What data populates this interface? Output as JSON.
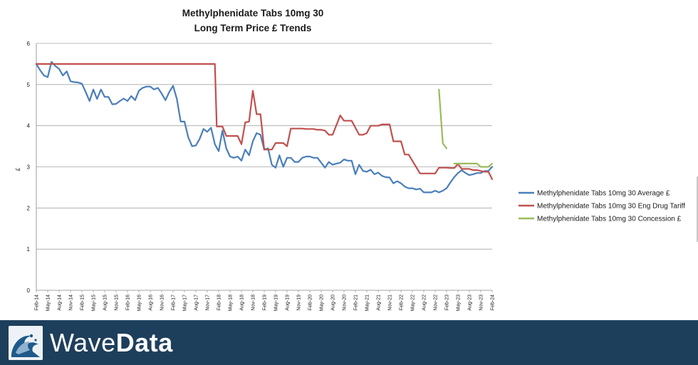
{
  "chart_data": {
    "type": "line",
    "title_lines": [
      "Methylphenidate Tabs 10mg 30",
      "Long Term Price £ Trends"
    ],
    "ylabel": "£",
    "xlabel": "",
    "ylim": [
      0,
      6
    ],
    "yticks": [
      "0",
      "1",
      "2",
      "3",
      "4",
      "5",
      "6"
    ],
    "grid": true,
    "legend_position": "right",
    "x_tick_labels": [
      "Feb-14",
      "May-14",
      "Aug-14",
      "Nov-14",
      "Feb-15",
      "May-15",
      "Aug-15",
      "Nov-15",
      "Feb-16",
      "May-16",
      "Aug-16",
      "Nov-16",
      "Feb-17",
      "May-17",
      "Aug-17",
      "Nov-17",
      "Feb-18",
      "May-18",
      "Aug-18",
      "Nov-18",
      "Feb-19",
      "May-19",
      "Aug-19",
      "Nov-19",
      "Feb-20",
      "May-20",
      "Aug-20",
      "Nov-20",
      "Feb-21",
      "May-21",
      "Aug-21",
      "Nov-21",
      "Feb-22",
      "May-22",
      "Aug-22",
      "Nov-22",
      "Feb-23",
      "May-23",
      "Aug-23",
      "Nov-23",
      "Feb-24"
    ],
    "series": [
      {
        "name": "Methylphenidate Tabs 10mg 30 Average £",
        "color": "#4a7ebb",
        "x": [
          0,
          1,
          2,
          3,
          4,
          5,
          6,
          7,
          8,
          9,
          10,
          11,
          12,
          13,
          14,
          15,
          16,
          17,
          18,
          19,
          20,
          21,
          22,
          23,
          24,
          25,
          26,
          27,
          28,
          29,
          30,
          31,
          32,
          33,
          34,
          35,
          36,
          37,
          38,
          39,
          40,
          41,
          42,
          43,
          44,
          45,
          46,
          47,
          48,
          49,
          50,
          51,
          52,
          53,
          54,
          55,
          56,
          57,
          58,
          59,
          60,
          61,
          62,
          63,
          64,
          65,
          66,
          67,
          68,
          69,
          70,
          71,
          72,
          73,
          74,
          75,
          76,
          77,
          78,
          79,
          80,
          81,
          82,
          83,
          84,
          85,
          86,
          87,
          88,
          89,
          90,
          91,
          92,
          93,
          94,
          95,
          96,
          97,
          98,
          99,
          100,
          101,
          102,
          103,
          104,
          105,
          106,
          107,
          108,
          109,
          110,
          111,
          112,
          113,
          114,
          115,
          116,
          117,
          118,
          119,
          120
        ],
        "values": [
          5.5,
          5.35,
          5.22,
          5.18,
          5.55,
          5.45,
          5.38,
          5.22,
          5.32,
          5.08,
          5.06,
          5.05,
          5.02,
          4.82,
          4.6,
          4.88,
          4.65,
          4.88,
          4.7,
          4.7,
          4.52,
          4.53,
          4.6,
          4.66,
          4.6,
          4.72,
          4.62,
          4.85,
          4.92,
          4.95,
          4.95,
          4.88,
          4.92,
          4.78,
          4.62,
          4.82,
          4.97,
          4.65,
          4.1,
          4.1,
          3.72,
          3.5,
          3.52,
          3.68,
          3.92,
          3.85,
          3.95,
          3.55,
          3.38,
          3.88,
          3.45,
          3.25,
          3.22,
          3.25,
          3.15,
          3.42,
          3.28,
          3.62,
          3.82,
          3.78,
          3.42,
          3.45,
          3.05,
          2.98,
          3.28,
          3.0,
          3.22,
          3.22,
          3.12,
          3.12,
          3.22,
          3.25,
          3.25,
          3.22,
          3.22,
          3.1,
          2.98,
          3.12,
          3.05,
          3.08,
          3.1,
          3.18,
          3.15,
          3.15,
          2.82,
          3.05,
          2.9,
          2.88,
          2.93,
          2.82,
          2.86,
          2.78,
          2.75,
          2.74,
          2.6,
          2.65,
          2.6,
          2.52,
          2.48,
          2.48,
          2.45,
          2.47,
          2.38,
          2.38,
          2.38,
          2.42,
          2.38,
          2.42,
          2.48,
          2.62,
          2.75,
          2.85,
          2.92,
          2.85,
          2.8,
          2.82,
          2.85,
          2.85,
          2.9,
          2.9,
          3.0
        ]
      },
      {
        "name": "Methylphenidate Tabs 10mg 30 Eng Drug Tariff",
        "color": "#c0504d",
        "x": [
          0,
          47,
          47.5,
          49,
          50,
          53,
          54,
          55,
          56,
          57,
          58,
          59,
          60,
          62,
          63,
          65,
          66,
          67,
          70,
          71,
          73,
          74,
          75,
          76,
          77,
          78,
          80,
          81,
          82,
          83,
          85,
          86,
          87,
          88,
          89,
          90,
          91,
          92,
          93,
          94,
          95,
          96,
          97,
          98,
          101,
          102,
          104,
          105,
          106,
          107,
          108,
          109,
          110,
          111,
          112,
          114,
          115,
          116,
          117,
          118,
          119,
          120
        ],
        "values": [
          5.5,
          5.5,
          3.98,
          3.98,
          3.75,
          3.75,
          3.55,
          4.08,
          4.1,
          4.85,
          4.28,
          4.28,
          3.42,
          3.42,
          3.58,
          3.58,
          3.5,
          3.93,
          3.93,
          3.92,
          3.92,
          3.9,
          3.9,
          3.88,
          3.78,
          3.78,
          4.25,
          4.12,
          4.12,
          4.12,
          3.78,
          3.78,
          3.82,
          4.0,
          4.0,
          4.0,
          4.03,
          4.03,
          4.03,
          3.62,
          3.62,
          3.62,
          3.3,
          3.3,
          2.84,
          2.84,
          2.84,
          2.84,
          2.98,
          2.98,
          2.98,
          2.97,
          2.97,
          3.07,
          2.95,
          2.95,
          2.92,
          2.92,
          2.9,
          2.88,
          2.88,
          2.7
        ]
      },
      {
        "name": "Methylphenidate Tabs 10mg 30 Concession £",
        "color": "#9bbb59",
        "segments": [
          {
            "x": [
              106,
              107,
              108
            ],
            "values": [
              4.88,
              3.57,
              3.45
            ]
          },
          {
            "x": [
              110,
              115,
              116,
              117,
              118,
              119,
              120
            ],
            "values": [
              3.08,
              3.08,
              3.08,
              3.0,
              3.0,
              3.0,
              3.08
            ]
          }
        ]
      }
    ]
  },
  "footer": {
    "brand_light": "Wave",
    "brand_bold": "Data",
    "logo_icon": "wave-logo-icon"
  }
}
